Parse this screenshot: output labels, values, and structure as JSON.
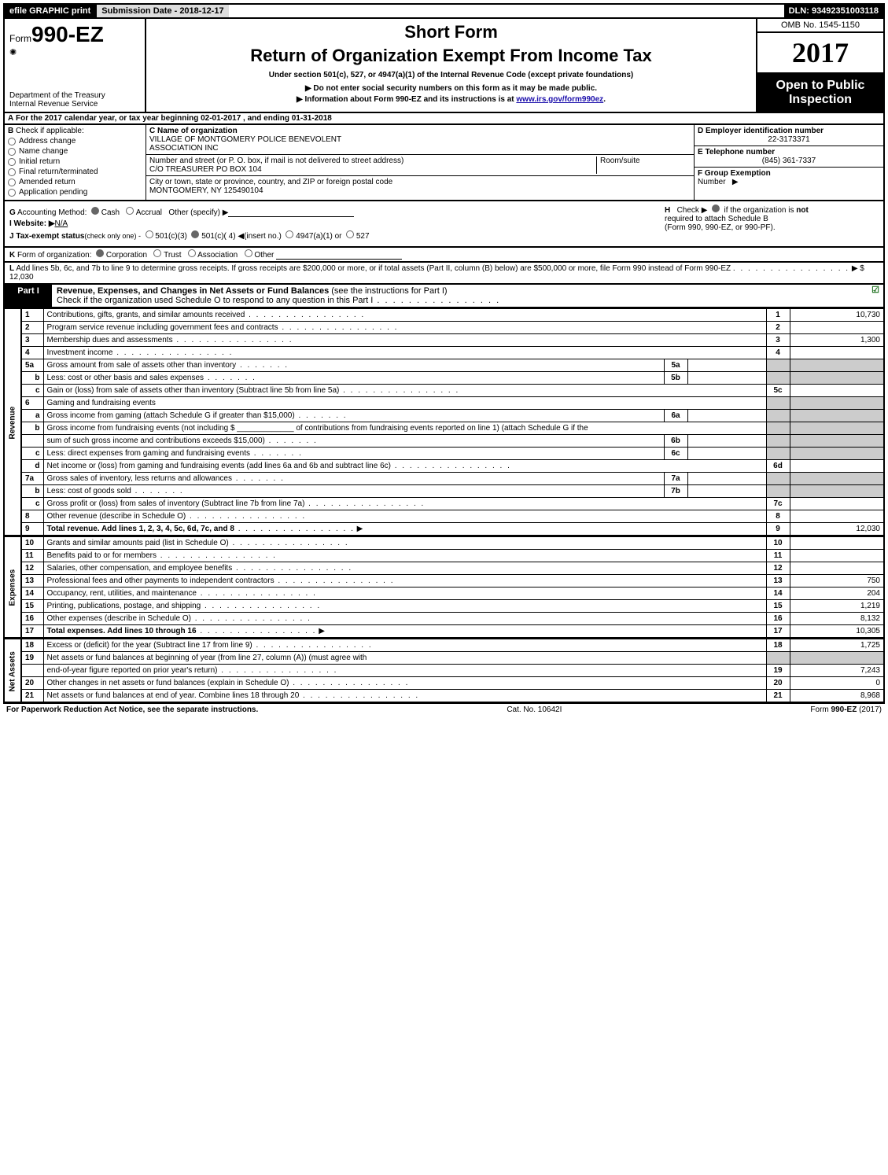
{
  "top_bar": {
    "efile": "efile GRAPHIC print",
    "submission_label": "Submission Date - 2018-12-17",
    "dln": "DLN: 93492351003118"
  },
  "header": {
    "form_prefix": "Form",
    "form_number": "990-EZ",
    "dept1": "Department of the Treasury",
    "dept2": "Internal Revenue Service",
    "short_form": "Short Form",
    "return_title": "Return of Organization Exempt From Income Tax",
    "under_section": "Under section 501(c), 527, or 4947(a)(1) of the Internal Revenue Code (except private foundations)",
    "arrow1": "▶ Do not enter social security numbers on this form as it may be made public.",
    "arrow2_prefix": "▶ Information about Form 990-EZ and its instructions is at ",
    "arrow2_link": "www.irs.gov/form990ez",
    "arrow2_suffix": ".",
    "omb": "OMB No. 1545-1150",
    "year": "2017",
    "open1": "Open to Public",
    "open2": "Inspection"
  },
  "lineA": {
    "prefix": "A",
    "text1": "For the 2017 calendar year, or tax year beginning 02-01-2017",
    "text2": ", and ending 01-31-2018"
  },
  "colB": {
    "prefix": "B",
    "label": "Check if applicable:",
    "items": [
      "Address change",
      "Name change",
      "Initial return",
      "Final return/terminated",
      "Amended return",
      "Application pending"
    ]
  },
  "colC": {
    "c_label": "C Name of organization",
    "c_name1": "VILLAGE OF MONTGOMERY POLICE BENEVOLENT",
    "c_name2": "ASSOCIATION INC",
    "addr_label": "Number and street (or P. O. box, if mail is not delivered to street address)",
    "addr_value": "C/O TREASURER PO BOX 104",
    "room_label": "Room/suite",
    "city_label": "City or town, state or province, country, and ZIP or foreign postal code",
    "city_value": "MONTGOMERY, NY  125490104"
  },
  "colDEF": {
    "d_label": "D Employer identification number",
    "d_value": "22-3173371",
    "e_label": "E Telephone number",
    "e_value": "(845) 361-7337",
    "f_label": "F Group Exemption",
    "f_label2": "Number",
    "f_arrow": "▶"
  },
  "blockGHIJ": {
    "g_prefix": "G",
    "g_label": "Accounting Method:",
    "g_cash": "Cash",
    "g_accrual": "Accrual",
    "g_other": "Other (specify) ▶",
    "i_prefix": "I Website: ▶",
    "i_value": "N/A",
    "j_prefix": "J Tax-exempt status",
    "j_note": "(check only one) -",
    "j_opt1": "501(c)(3)",
    "j_opt2": "501(c)( 4) ◀(insert no.)",
    "j_opt3": "4947(a)(1) or",
    "j_opt4": "527",
    "h_prefix": "H",
    "h_text1": "Check ▶",
    "h_text2": "if the organization is",
    "h_not": "not",
    "h_text3": "required to attach Schedule B",
    "h_text4": "(Form 990, 990-EZ, or 990-PF)."
  },
  "lineK": {
    "prefix": "K",
    "label": "Form of organization:",
    "opt1": "Corporation",
    "opt2": "Trust",
    "opt3": "Association",
    "opt4": "Other"
  },
  "lineL": {
    "prefix": "L",
    "text": "Add lines 5b, 6c, and 7b to line 9 to determine gross receipts. If gross receipts are $200,000 or more, or if total assets (Part II, column (B) below) are $500,000 or more, file Form 990 instead of Form 990-EZ",
    "arrow": "▶ $ 12,030"
  },
  "partI": {
    "part_label": "Part I",
    "title_bold": "Revenue, Expenses, and Changes in Net Assets or Fund Balances",
    "title_rest": " (see the instructions for Part I)",
    "subtext": "Check if the organization used Schedule O to respond to any question in this Part I"
  },
  "side_labels": {
    "revenue": "Revenue",
    "expenses": "Expenses",
    "netassets": "Net Assets"
  },
  "rows": [
    {
      "n": "1",
      "desc": "Contributions, gifts, grants, and similar amounts received",
      "rn": "1",
      "rv": "10,730"
    },
    {
      "n": "2",
      "desc": "Program service revenue including government fees and contracts",
      "rn": "2",
      "rv": ""
    },
    {
      "n": "3",
      "desc": "Membership dues and assessments",
      "rn": "3",
      "rv": "1,300"
    },
    {
      "n": "4",
      "desc": "Investment income",
      "rn": "4",
      "rv": ""
    },
    {
      "n": "5a",
      "desc": "Gross amount from sale of assets other than inventory",
      "mn": "5a",
      "mv": "",
      "shaded": true
    },
    {
      "n": "b",
      "sub": true,
      "desc": "Less: cost or other basis and sales expenses",
      "mn": "5b",
      "mv": "",
      "shaded": true
    },
    {
      "n": "c",
      "sub": true,
      "desc": "Gain or (loss) from sale of assets other than inventory (Subtract line 5b from line 5a)",
      "rn": "5c",
      "rv": ""
    },
    {
      "n": "6",
      "desc": "Gaming and fundraising events",
      "shaded": true,
      "noright": true
    },
    {
      "n": "a",
      "sub": true,
      "desc": "Gross income from gaming (attach Schedule G if greater than $15,000)",
      "mn": "6a",
      "mv": "",
      "shaded": true
    },
    {
      "n": "b",
      "sub": true,
      "desc": "Gross income from fundraising events (not including $ _____________ of contributions from fundraising events reported on line 1) (attach Schedule G if the",
      "shaded": true,
      "noright": true
    },
    {
      "n": "",
      "sub": true,
      "desc": "sum of such gross income and contributions exceeds $15,000)",
      "mn": "6b",
      "mv": "",
      "shaded": true
    },
    {
      "n": "c",
      "sub": true,
      "desc": "Less: direct expenses from gaming and fundraising events",
      "mn": "6c",
      "mv": "",
      "shaded": true
    },
    {
      "n": "d",
      "sub": true,
      "desc": "Net income or (loss) from gaming and fundraising events (add lines 6a and 6b and subtract line 6c)",
      "rn": "6d",
      "rv": ""
    },
    {
      "n": "7a",
      "desc": "Gross sales of inventory, less returns and allowances",
      "mn": "7a",
      "mv": "",
      "shaded": true
    },
    {
      "n": "b",
      "sub": true,
      "desc": "Less: cost of goods sold",
      "mn": "7b",
      "mv": "",
      "shaded": true
    },
    {
      "n": "c",
      "sub": true,
      "desc": "Gross profit or (loss) from sales of inventory (Subtract line 7b from line 7a)",
      "rn": "7c",
      "rv": ""
    },
    {
      "n": "8",
      "desc": "Other revenue (describe in Schedule O)",
      "rn": "8",
      "rv": ""
    },
    {
      "n": "9",
      "desc": "Total revenue. Add lines 1, 2, 3, 4, 5c, 6d, 7c, and 8",
      "bold": true,
      "arrow": true,
      "rn": "9",
      "rv": "12,030"
    }
  ],
  "rows_exp": [
    {
      "n": "10",
      "desc": "Grants and similar amounts paid (list in Schedule O)",
      "rn": "10",
      "rv": ""
    },
    {
      "n": "11",
      "desc": "Benefits paid to or for members",
      "rn": "11",
      "rv": ""
    },
    {
      "n": "12",
      "desc": "Salaries, other compensation, and employee benefits",
      "rn": "12",
      "rv": ""
    },
    {
      "n": "13",
      "desc": "Professional fees and other payments to independent contractors",
      "rn": "13",
      "rv": "750"
    },
    {
      "n": "14",
      "desc": "Occupancy, rent, utilities, and maintenance",
      "rn": "14",
      "rv": "204"
    },
    {
      "n": "15",
      "desc": "Printing, publications, postage, and shipping",
      "rn": "15",
      "rv": "1,219"
    },
    {
      "n": "16",
      "desc": "Other expenses (describe in Schedule O)",
      "rn": "16",
      "rv": "8,132"
    },
    {
      "n": "17",
      "desc": "Total expenses. Add lines 10 through 16",
      "bold": true,
      "arrow": true,
      "rn": "17",
      "rv": "10,305"
    }
  ],
  "rows_net": [
    {
      "n": "18",
      "desc": "Excess or (deficit) for the year (Subtract line 17 from line 9)",
      "rn": "18",
      "rv": "1,725"
    },
    {
      "n": "19",
      "desc": "Net assets or fund balances at beginning of year (from line 27, column (A)) (must agree with",
      "shaded": true,
      "noright": true
    },
    {
      "n": "",
      "desc": "end-of-year figure reported on prior year's return)",
      "rn": "19",
      "rv": "7,243"
    },
    {
      "n": "20",
      "desc": "Other changes in net assets or fund balances (explain in Schedule O)",
      "rn": "20",
      "rv": "0"
    },
    {
      "n": "21",
      "desc": "Net assets or fund balances at end of year. Combine lines 18 through 20",
      "rn": "21",
      "rv": "8,968"
    }
  ],
  "footer": {
    "left": "For Paperwork Reduction Act Notice, see the separate instructions.",
    "mid": "Cat. No. 10642I",
    "right_prefix": "Form ",
    "right_bold": "990-EZ",
    "right_suffix": " (2017)"
  }
}
